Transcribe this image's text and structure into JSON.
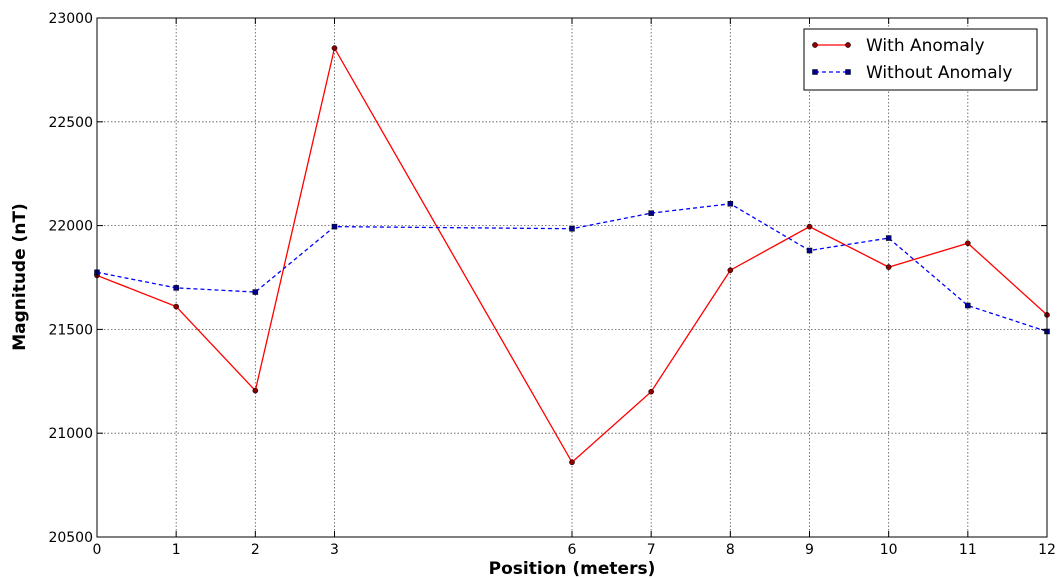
{
  "chart_data": {
    "type": "line",
    "xlabel": "Position (meters)",
    "ylabel": "Magnitude (nT)",
    "xlim": [
      0,
      12
    ],
    "ylim": [
      20500,
      23000
    ],
    "x_ticks": [
      0,
      1,
      2,
      3,
      6,
      7,
      8,
      9,
      10,
      11,
      12
    ],
    "y_ticks": [
      20500,
      21000,
      21500,
      22000,
      22500,
      23000
    ],
    "grid": true,
    "legend_position": "top-right",
    "series": [
      {
        "name": "With Anomaly",
        "color": "#ff0000",
        "marker_color": "#8b0000",
        "line_style": "solid",
        "marker": "circle",
        "x": [
          0,
          1,
          2,
          3,
          6,
          7,
          8,
          9,
          10,
          11,
          12
        ],
        "y": [
          21760,
          21610,
          21205,
          22855,
          20860,
          21200,
          21785,
          21995,
          21800,
          21915,
          21570
        ]
      },
      {
        "name": "Without Anomaly",
        "color": "#0000ff",
        "marker_color": "#00008b",
        "line_style": "dashed",
        "marker": "square",
        "x": [
          0,
          1,
          2,
          3,
          6,
          7,
          8,
          9,
          10,
          11,
          12
        ],
        "y": [
          21775,
          21700,
          21680,
          21995,
          21985,
          22060,
          22105,
          21880,
          21940,
          21615,
          21490
        ]
      }
    ]
  }
}
